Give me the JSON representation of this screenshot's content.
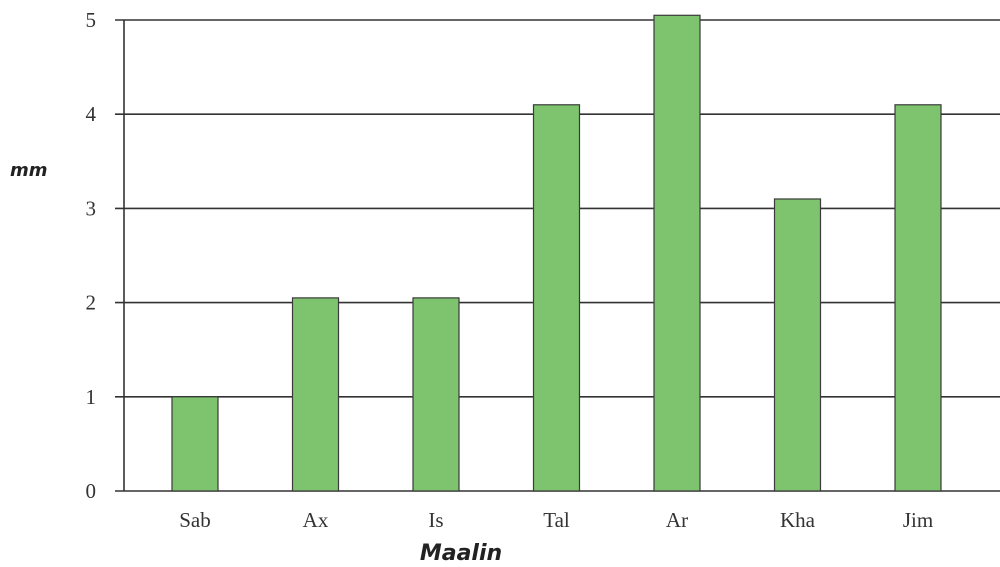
{
  "chart_data": {
    "type": "bar",
    "categories": [
      "Sab",
      "Ax",
      "Is",
      "Tal",
      "Ar",
      "Kha",
      "Jim"
    ],
    "values": [
      1.0,
      2.05,
      2.05,
      4.1,
      5.05,
      3.1,
      4.1
    ],
    "xlabel": "Maalin",
    "ylabel": "mm",
    "ylim": [
      0,
      5
    ],
    "yticks": [
      0,
      1,
      2,
      3,
      4,
      5
    ],
    "grid": true,
    "bar_color": "#7ec46f",
    "bar_edge_color": "#3a3a3a",
    "axis_color": "#333333"
  }
}
